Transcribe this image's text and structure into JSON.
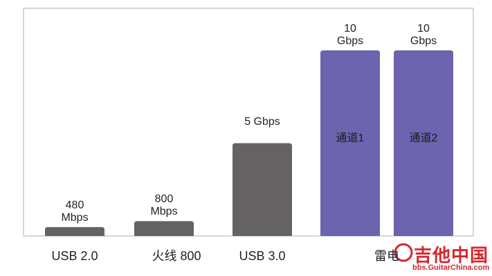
{
  "chart_data": {
    "type": "bar",
    "categories": [
      "USB 2.0",
      "火线 800",
      "USB 3.0",
      "雷电",
      null
    ],
    "values": [
      480,
      800,
      5000,
      10000,
      10000
    ],
    "value_labels": [
      "480 Mbps",
      "800 Mbps",
      "5 Gbps",
      "10 Gbps",
      "10 Gbps"
    ],
    "bar_labels": [
      null,
      null,
      null,
      "通道1",
      "通道2"
    ],
    "colors": [
      "#646263",
      "#646263",
      "#646263",
      "#6c64ae",
      "#6c64ae"
    ],
    "ylim": [
      0,
      10000
    ]
  },
  "watermark": {
    "name": "吉他中国",
    "url": "bbs.GuitarChina.com"
  }
}
